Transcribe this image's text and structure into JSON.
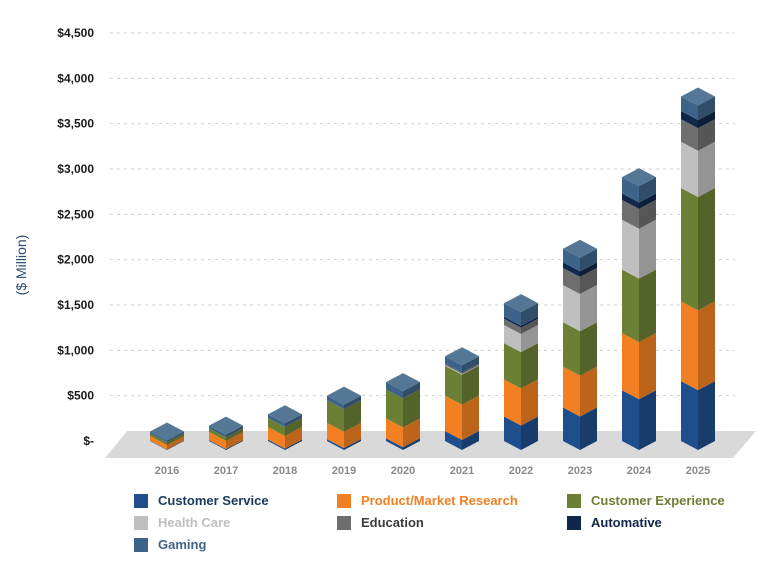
{
  "chart_data": {
    "type": "bar",
    "stacked": true,
    "style": "3d",
    "categories": [
      "2016",
      "2017",
      "2018",
      "2019",
      "2020",
      "2021",
      "2022",
      "2023",
      "2024",
      "2025"
    ],
    "ylabel": "($ Million)",
    "ylim": [
      0,
      4500
    ],
    "y_ticks": [
      0,
      500,
      1000,
      1500,
      2000,
      2500,
      3000,
      3500,
      4000,
      4500
    ],
    "y_tick_labels": [
      "$-",
      "$500",
      "$1,000",
      "$1,500",
      "$2,000",
      "$2,500",
      "$3,000",
      "$3,500",
      "$4,000",
      "$4,500"
    ],
    "grid": true,
    "legend_position": "bottom",
    "series": [
      {
        "name": "Customer Service",
        "color": "#1f4e8c",
        "label_color": "#1b3a5c",
        "values": [
          5,
          10,
          15,
          20,
          30,
          110,
          270,
          370,
          560,
          660
        ]
      },
      {
        "name": "Product/Market Research",
        "color": "#f28023",
        "label_color": "#f28023",
        "values": [
          50,
          90,
          140,
          180,
          220,
          390,
          410,
          450,
          630,
          880
        ]
      },
      {
        "name": "Customer Experience",
        "color": "#6b7f35",
        "label_color": "#6b7f35",
        "values": [
          30,
          40,
          100,
          250,
          320,
          330,
          400,
          490,
          700,
          1250
        ]
      },
      {
        "name": "Health Care",
        "color": "#bfbfbf",
        "label_color": "#bfbfbf",
        "values": [
          0,
          0,
          0,
          0,
          0,
          10,
          200,
          410,
          550,
          510
        ]
      },
      {
        "name": "Education",
        "color": "#6e6e6e",
        "label_color": "#3c3c3c",
        "values": [
          0,
          0,
          0,
          0,
          0,
          10,
          70,
          190,
          220,
          250
        ]
      },
      {
        "name": "Automative",
        "color": "#10264a",
        "label_color": "#10264a",
        "values": [
          0,
          0,
          0,
          0,
          0,
          5,
          20,
          60,
          70,
          90
        ]
      },
      {
        "name": "Gaming",
        "color": "#3d6488",
        "label_color": "#3d6488",
        "values": [
          20,
          30,
          40,
          50,
          80,
          80,
          150,
          150,
          180,
          160
        ]
      }
    ]
  }
}
